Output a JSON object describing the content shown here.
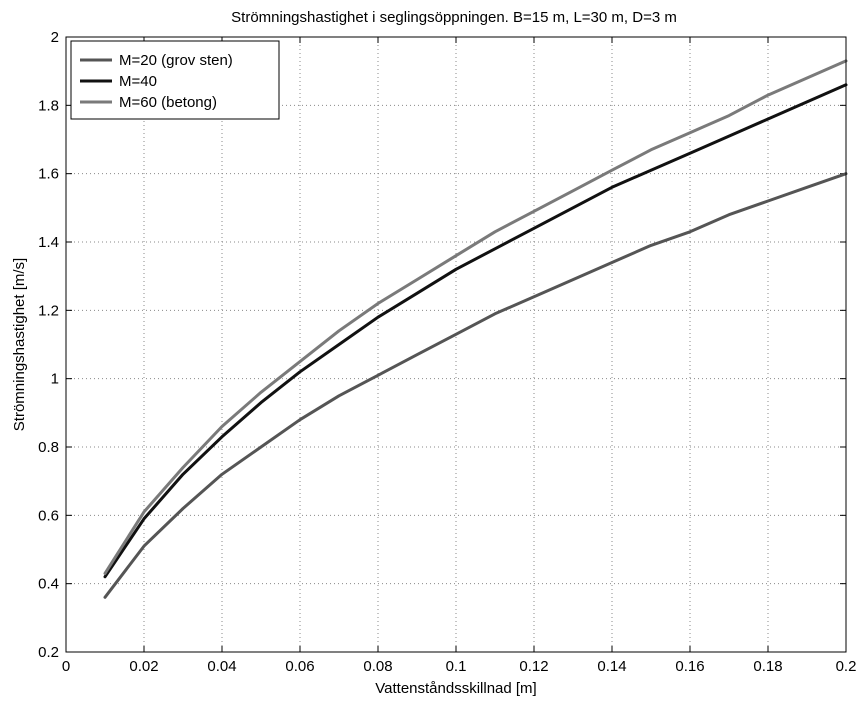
{
  "chart_data": {
    "type": "line",
    "title": "Strömningshastighet i seglingsöppningen. B=15 m, L=30 m, D=3 m",
    "xlabel": "Vattenståndsskillnad [m]",
    "ylabel": "Strömningshastighet [m/s]",
    "xlim": [
      0,
      0.2
    ],
    "ylim": [
      0.2,
      2
    ],
    "xticks": [
      0,
      0.02,
      0.04,
      0.06,
      0.08,
      0.1,
      0.12,
      0.14,
      0.16,
      0.18,
      0.2
    ],
    "xtick_labels": [
      "0",
      "0.02",
      "0.04",
      "0.06",
      "0.08",
      "0.1",
      "0.12",
      "0.14",
      "0.16",
      "0.18",
      "0.2"
    ],
    "yticks": [
      0.2,
      0.4,
      0.6,
      0.8,
      1.0,
      1.2,
      1.4,
      1.6,
      1.8,
      2.0
    ],
    "ytick_labels": [
      "0.2",
      "0.4",
      "0.6",
      "0.8",
      "1",
      "1.2",
      "1.4",
      "1.6",
      "1.8",
      "2"
    ],
    "grid": true,
    "legend_position": "top-left",
    "x": [
      0.01,
      0.02,
      0.03,
      0.04,
      0.05,
      0.06,
      0.07,
      0.08,
      0.09,
      0.1,
      0.11,
      0.12,
      0.13,
      0.14,
      0.15,
      0.16,
      0.17,
      0.18,
      0.19,
      0.2
    ],
    "series": [
      {
        "name": "M=20 (grov sten)",
        "color": "#555555",
        "values": [
          0.36,
          0.51,
          0.62,
          0.72,
          0.8,
          0.88,
          0.95,
          1.01,
          1.07,
          1.13,
          1.19,
          1.24,
          1.29,
          1.34,
          1.39,
          1.43,
          1.48,
          1.52,
          1.56,
          1.6
        ]
      },
      {
        "name": "M=40",
        "color": "#111111",
        "values": [
          0.42,
          0.59,
          0.72,
          0.83,
          0.93,
          1.02,
          1.1,
          1.18,
          1.25,
          1.32,
          1.38,
          1.44,
          1.5,
          1.56,
          1.61,
          1.66,
          1.71,
          1.76,
          1.81,
          1.86
        ]
      },
      {
        "name": "M=60 (betong)",
        "color": "#7a7a7a",
        "values": [
          0.43,
          0.61,
          0.74,
          0.86,
          0.96,
          1.05,
          1.14,
          1.22,
          1.29,
          1.36,
          1.43,
          1.49,
          1.55,
          1.61,
          1.67,
          1.72,
          1.77,
          1.83,
          1.88,
          1.93
        ]
      }
    ]
  }
}
